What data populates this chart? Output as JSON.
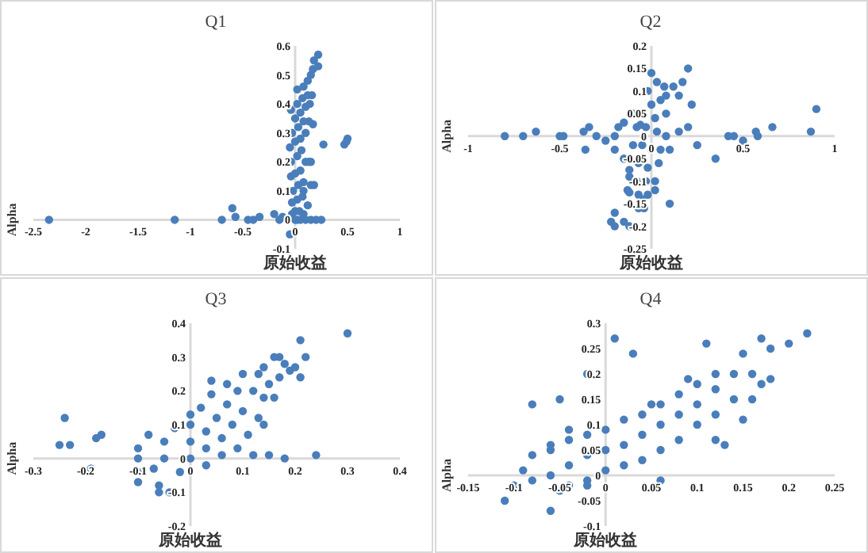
{
  "chart_data": [
    {
      "type": "scatter",
      "title": "Q1",
      "xlabel": "原始收益",
      "ylabel": "Alpha",
      "color": "#4a7ebb",
      "xlim": [
        -2.5,
        1
      ],
      "ylim": [
        -0.1,
        0.6
      ],
      "xticks": [
        -2.5,
        -2,
        -1.5,
        -1,
        -0.5,
        0,
        0.5,
        1
      ],
      "yticks": [
        -0.1,
        0,
        0.1,
        0.2,
        0.3,
        0.4,
        0.5,
        0.6
      ],
      "x": [
        0,
        0.02,
        0.05,
        -0.03,
        0,
        0.04,
        0.08,
        0.1,
        0.15,
        -0.03,
        0.02,
        0.07,
        0.12,
        -0.02,
        0.03,
        0.08,
        0.08,
        0.15,
        -0.04,
        0,
        0.05,
        0.1,
        0.13,
        -0.04,
        0.02,
        0.06,
        -0.05,
        0,
        0.05,
        0.1,
        -0.03,
        0.03,
        0.08,
        0.13,
        0.17,
        0,
        0.05,
        0.1,
        0.14,
        0.02,
        0.07,
        0.12,
        0.16,
        0.08,
        0.12,
        0.15,
        0.17,
        0.18,
        0.22,
        0.22,
        0.02,
        -0.04,
        -2.35,
        -1.15,
        -0.7,
        -0.6,
        -0.57,
        -0.45,
        -0.4,
        -0.34,
        -0.2,
        -0.15,
        -0.12,
        -0.05,
        0.2,
        0.25,
        0.27,
        0.47,
        0.49,
        0.5,
        0.18,
        0.15
      ],
      "values": [
        0,
        0,
        0,
        0.02,
        0.03,
        0.03,
        0.02,
        0,
        0,
        0.06,
        0.07,
        0.08,
        0.05,
        0.1,
        0.12,
        0.1,
        0.13,
        0.12,
        0.15,
        0.16,
        0.17,
        0.2,
        0.2,
        0.2,
        0.22,
        0.24,
        0.25,
        0.27,
        0.28,
        0.3,
        0.3,
        0.32,
        0.34,
        0.34,
        0.33,
        0.35,
        0.37,
        0.39,
        0.4,
        0.4,
        0.42,
        0.43,
        0.43,
        0.46,
        0.48,
        0.5,
        0.52,
        0.55,
        0.57,
        0.53,
        0.45,
        0.38,
        0,
        0,
        0,
        0.04,
        0.01,
        0,
        0,
        0.01,
        0.02,
        0,
        0.01,
        -0.05,
        0,
        0,
        0.26,
        0.26,
        0.27,
        0.28,
        0.12,
        0.2
      ]
    },
    {
      "type": "scatter",
      "title": "Q2",
      "xlabel": "原始收益",
      "ylabel": "Alpha",
      "color": "#4a7ebb",
      "xlim": [
        -1,
        1
      ],
      "ylim": [
        -0.25,
        0.2
      ],
      "xticks": [
        -1,
        -0.5,
        0,
        0.5,
        1
      ],
      "yticks": [
        -0.25,
        -0.2,
        -0.15,
        -0.1,
        -0.05,
        0,
        0.05,
        0.1,
        0.15,
        0.2
      ],
      "x": [
        -0.02,
        0.03,
        0.07,
        0,
        0.05,
        -0.06,
        0.02,
        0.08,
        -0.08,
        -0.03,
        0.03,
        0.08,
        -0.1,
        -0.05,
        0,
        0.05,
        -0.12,
        -0.07,
        -0.02,
        0.04,
        -0.12,
        -0.08,
        -0.03,
        0.02,
        -0.13,
        -0.07,
        -0.02,
        0.02,
        -0.12,
        -0.07,
        -0.04,
        -0.8,
        -0.7,
        -0.63,
        -0.5,
        -0.48,
        -0.37,
        -0.34,
        -0.3,
        -0.25,
        -0.2,
        -0.18,
        -0.15,
        -0.1,
        -0.36,
        -0.2,
        -0.15,
        -0.2,
        -0.22,
        -0.2,
        -0.15,
        -0.12,
        -0.05,
        0.1,
        0.1,
        0.15,
        0.12,
        0.15,
        0.2,
        0.17,
        0.22,
        0.2,
        0.25,
        0.35,
        0.42,
        0.45,
        0.5,
        0.57,
        0.58,
        0.66,
        0.87,
        0.9,
        0,
        0.08
      ],
      "values": [
        0.1,
        0.12,
        0.11,
        0.07,
        0.08,
        0.025,
        0.04,
        0.05,
        0.02,
        0.02,
        0.01,
        0,
        -0.02,
        -0.02,
        -0.03,
        -0.03,
        -0.075,
        -0.06,
        -0.07,
        -0.06,
        -0.09,
        -0.1,
        -0.1,
        -0.1,
        -0.12,
        -0.13,
        -0.13,
        -0.12,
        -0.125,
        -0.16,
        -0.16,
        0,
        0,
        0.01,
        0,
        0,
        0.01,
        0.02,
        0,
        -0.01,
        0,
        0.02,
        0.03,
        0.05,
        -0.03,
        -0.03,
        -0.05,
        -0.17,
        -0.19,
        -0.2,
        -0.19,
        -0.2,
        -0.14,
        -0.15,
        -0.03,
        0.01,
        0.11,
        0.09,
        0.15,
        0.12,
        0.07,
        0.02,
        -0.02,
        -0.05,
        0,
        0,
        -0.01,
        0.01,
        0,
        0.02,
        0.01,
        0.06,
        0.14,
        0.09
      ]
    },
    {
      "type": "scatter",
      "title": "Q3",
      "xlabel": "原始收益",
      "ylabel": "Alpha",
      "color": "#4a7ebb",
      "xlim": [
        -0.3,
        0.4
      ],
      "ylim": [
        -0.2,
        0.4
      ],
      "xticks": [
        -0.3,
        -0.2,
        -0.1,
        0,
        0.1,
        0.2,
        0.3,
        0.4
      ],
      "yticks": [
        -0.2,
        -0.1,
        0,
        0.1,
        0.2,
        0.3,
        0.4
      ],
      "x": [
        -0.1,
        -0.1,
        -0.08,
        -0.07,
        -0.05,
        -0.05,
        -0.03,
        -0.02,
        0,
        0,
        0,
        0,
        0.02,
        0.03,
        0.03,
        0.03,
        0.04,
        0.05,
        0.06,
        0.06,
        0.07,
        0.07,
        0.08,
        0.09,
        0.09,
        0.1,
        0.1,
        0.11,
        0.12,
        0.13,
        0.13,
        0.14,
        0.15,
        0.04,
        -0.24,
        -0.25,
        -0.23,
        -0.18,
        -0.17,
        -0.19,
        -0.1,
        -0.06,
        -0.06,
        -0.04,
        -0.1,
        0.12,
        0.15,
        0.18,
        0.24,
        0.14,
        0.16,
        0.17,
        0.17,
        0.18,
        0.19,
        0.2,
        0.21,
        0.21,
        0.22,
        0.3,
        0.14,
        0.16
      ],
      "values": [
        0,
        0.03,
        0.07,
        -0.03,
        0,
        0.05,
        0.09,
        -0.04,
        0,
        0.05,
        0.1,
        0.13,
        0.15,
        -0.02,
        0.03,
        0.08,
        0.19,
        0.12,
        0.01,
        0.06,
        0.16,
        0.22,
        0.1,
        0.03,
        0.2,
        0.14,
        0.25,
        0.07,
        0.2,
        0.25,
        0.12,
        0.18,
        0.22,
        0.23,
        0.12,
        0.04,
        0.04,
        0.06,
        0.07,
        -0.03,
        -0.07,
        -0.08,
        -0.1,
        -0.1,
        -0.04,
        0.01,
        0.01,
        0,
        0.01,
        0.1,
        0.18,
        0.24,
        0.3,
        0.28,
        0.26,
        0.27,
        0.24,
        0.35,
        0.3,
        0.37,
        0.27,
        0.3
      ]
    },
    {
      "type": "scatter",
      "title": "Q4",
      "xlabel": "原始收益",
      "ylabel": "Alpha",
      "color": "#4a7ebb",
      "xlim": [
        -0.15,
        0.25
      ],
      "ylim": [
        -0.1,
        0.3
      ],
      "xticks": [
        -0.15,
        -0.1,
        -0.05,
        0,
        0.05,
        0.1,
        0.15,
        0.2,
        0.25
      ],
      "yticks": [
        -0.1,
        -0.05,
        0,
        0.05,
        0.1,
        0.15,
        0.2,
        0.25,
        0.3
      ],
      "x": [
        -0.09,
        -0.08,
        -0.06,
        -0.06,
        -0.04,
        -0.04,
        -0.02,
        -0.02,
        -0.02,
        0,
        0,
        0,
        0.02,
        0.02,
        0.02,
        0.04,
        0.04,
        0.04,
        0.06,
        0.06,
        0.06,
        0.08,
        0.08,
        0.08,
        0.1,
        0.1,
        0.1,
        0.12,
        0.12,
        0.12,
        0.14,
        0.14,
        0.15,
        0.16,
        -0.11,
        -0.1,
        -0.08,
        -0.08,
        -0.05,
        -0.05,
        -0.06,
        -0.04,
        -0.02,
        -0.02,
        -0.04,
        -0.06,
        0.01,
        0.03,
        0.05,
        0.06,
        0.11,
        0.12,
        0.13,
        0.15,
        0.16,
        0.17,
        0.17,
        0.18,
        0.18,
        0.2,
        0.22,
        0.09
      ],
      "values": [
        0.01,
        0.04,
        0,
        0.05,
        0.07,
        0.02,
        -0.01,
        0.04,
        0.08,
        0.01,
        0.05,
        0.09,
        0.02,
        0.06,
        0.11,
        0.03,
        0.08,
        0.12,
        0.05,
        0.1,
        0.14,
        0.07,
        0.12,
        0.16,
        0.1,
        0.14,
        0.18,
        0.12,
        0.17,
        0.2,
        0.15,
        0.2,
        0.24,
        0.2,
        -0.05,
        -0.02,
        -0.01,
        0.14,
        0.15,
        -0.03,
        -0.07,
        -0.02,
        -0.02,
        0.2,
        0.09,
        0.06,
        0.27,
        0.24,
        0.14,
        -0.01,
        0.26,
        0.07,
        0.06,
        0.11,
        0.15,
        0.18,
        0.27,
        0.25,
        0.19,
        0.26,
        0.28,
        0.19
      ]
    }
  ]
}
